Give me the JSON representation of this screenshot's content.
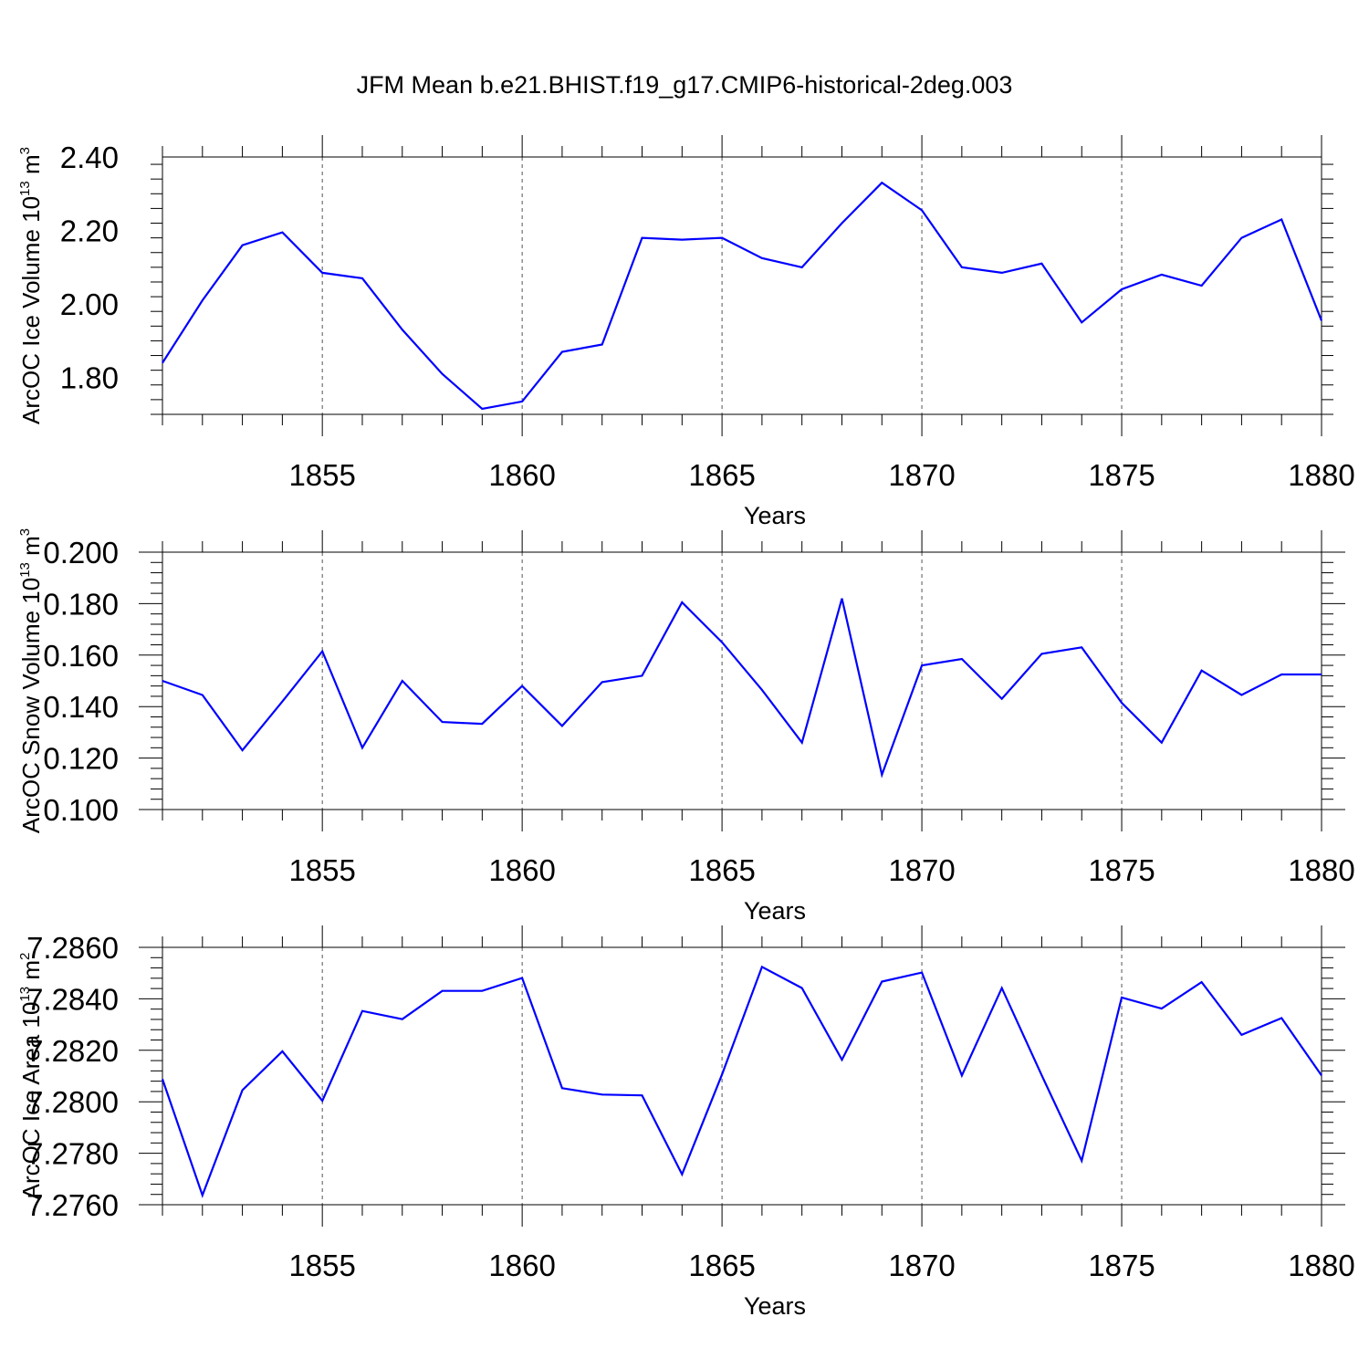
{
  "title": "JFM Mean b.e21.BHIST.f19_g17.CMIP6-historical-2deg.003",
  "chart_data": [
    {
      "type": "line",
      "ylabel": "ArcOC Ice Volume 10",
      "ylabel_sup": "13",
      "ylabel_unit": " m",
      "ylabel_unit_sup": "3",
      "xlabel": "Years",
      "xlim": [
        1851,
        1880
      ],
      "ylim": [
        1.7,
        2.4
      ],
      "yticks": [
        "1.80",
        "2.00",
        "2.20",
        "2.40"
      ],
      "ytick_values": [
        1.8,
        2.0,
        2.2,
        2.4
      ],
      "xticks": [
        "1855",
        "1860",
        "1865",
        "1870",
        "1875",
        "1880"
      ],
      "xtick_values": [
        1855,
        1860,
        1865,
        1870,
        1875,
        1880
      ],
      "line_color": "#0000ff",
      "x": [
        1851,
        1852,
        1853,
        1854,
        1855,
        1856,
        1857,
        1858,
        1859,
        1860,
        1861,
        1862,
        1863,
        1864,
        1865,
        1866,
        1867,
        1868,
        1869,
        1870,
        1871,
        1872,
        1873,
        1874,
        1875,
        1876,
        1877,
        1878,
        1879,
        1880
      ],
      "values": [
        1.84,
        2.01,
        2.16,
        2.195,
        2.085,
        2.07,
        1.93,
        1.81,
        1.715,
        1.735,
        1.87,
        1.89,
        2.18,
        2.175,
        2.18,
        2.125,
        2.1,
        2.22,
        2.33,
        2.255,
        2.1,
        2.085,
        2.11,
        1.95,
        2.04,
        2.08,
        2.05,
        2.18,
        2.23,
        1.955
      ]
    },
    {
      "type": "line",
      "ylabel": "ArcOC Snow Volume 10",
      "ylabel_sup": "13",
      "ylabel_unit": " m",
      "ylabel_unit_sup": "3",
      "xlabel": "Years",
      "xlim": [
        1851,
        1880
      ],
      "ylim": [
        0.1,
        0.2
      ],
      "yticks": [
        "0.100",
        "0.120",
        "0.140",
        "0.160",
        "0.180",
        "0.200"
      ],
      "ytick_values": [
        0.1,
        0.12,
        0.14,
        0.16,
        0.18,
        0.2
      ],
      "xticks": [
        "1855",
        "1860",
        "1865",
        "1870",
        "1875",
        "1880"
      ],
      "xtick_values": [
        1855,
        1860,
        1865,
        1870,
        1875,
        1880
      ],
      "line_color": "#0000ff",
      "x": [
        1851,
        1852,
        1853,
        1854,
        1855,
        1856,
        1857,
        1858,
        1859,
        1860,
        1861,
        1862,
        1863,
        1864,
        1865,
        1866,
        1867,
        1868,
        1869,
        1870,
        1871,
        1872,
        1873,
        1874,
        1875,
        1876,
        1877,
        1878,
        1879,
        1880
      ],
      "values": [
        0.15,
        0.1445,
        0.123,
        0.142,
        0.1615,
        0.124,
        0.15,
        0.134,
        0.1333,
        0.148,
        0.1325,
        0.1495,
        0.152,
        0.1805,
        0.165,
        0.1465,
        0.126,
        0.182,
        0.1135,
        0.156,
        0.1585,
        0.143,
        0.1605,
        0.163,
        0.1415,
        0.126,
        0.154,
        0.1445,
        0.1525,
        0.1525
      ]
    },
    {
      "type": "line",
      "ylabel": "ArcOC Ice Area 10",
      "ylabel_sup": "13",
      "ylabel_unit": " m",
      "ylabel_unit_sup": "2",
      "xlabel": "Years",
      "xlim": [
        1851,
        1880
      ],
      "ylim": [
        7.276,
        7.286
      ],
      "yticks": [
        "7.2760",
        "7.2780",
        "7.2800",
        "7.2820",
        "7.2840",
        "7.2860"
      ],
      "ytick_values": [
        7.276,
        7.278,
        7.28,
        7.282,
        7.284,
        7.286
      ],
      "xticks": [
        "1855",
        "1860",
        "1865",
        "1870",
        "1875",
        "1880"
      ],
      "xtick_values": [
        1855,
        1860,
        1865,
        1870,
        1875,
        1880
      ],
      "line_color": "#0000ff",
      "x": [
        1851,
        1852,
        1853,
        1854,
        1855,
        1856,
        1857,
        1858,
        1859,
        1860,
        1861,
        1862,
        1863,
        1864,
        1865,
        1866,
        1867,
        1868,
        1869,
        1870,
        1871,
        1872,
        1873,
        1874,
        1875,
        1876,
        1877,
        1878,
        1879,
        1880
      ],
      "values": [
        7.28088,
        7.27637,
        7.28045,
        7.28196,
        7.28004,
        7.28353,
        7.28321,
        7.28431,
        7.28431,
        7.28481,
        7.28053,
        7.28028,
        7.28025,
        7.27718,
        7.28106,
        7.28524,
        7.28442,
        7.28163,
        7.28467,
        7.28502,
        7.28102,
        7.28442,
        7.28103,
        7.27771,
        7.28405,
        7.28362,
        7.28465,
        7.2826,
        7.28325,
        7.28102
      ]
    }
  ]
}
